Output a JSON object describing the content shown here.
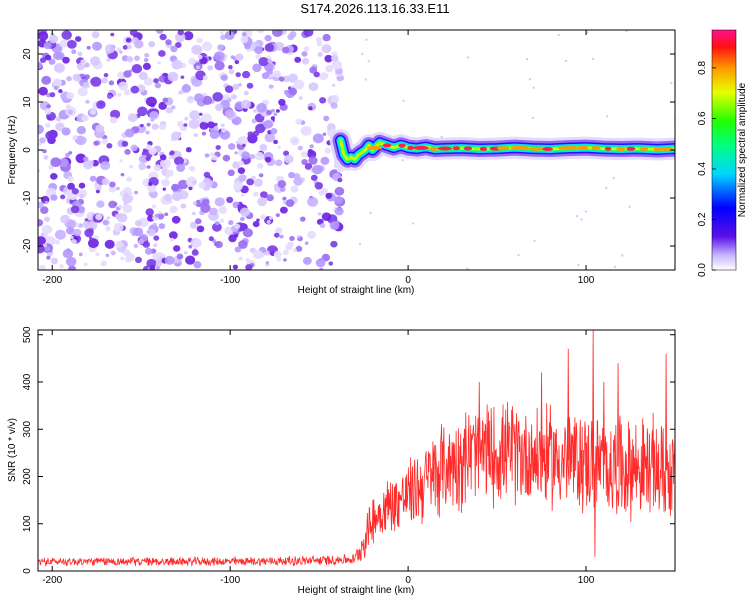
{
  "title": "S174.2026.113.16.33.E11",
  "colors": {
    "snr_line": "#ff2a2a",
    "noise_dot": "#8a2be2",
    "frame": "#000000"
  },
  "chart_data": [
    {
      "type": "heatmap",
      "title": "S174.2026.113.16.33.E11",
      "xlabel": "Height of straight line (km)",
      "ylabel": "Frequency (Hz)",
      "xlim": [
        -208,
        150
      ],
      "ylim": [
        -25,
        25
      ],
      "x_ticks": [
        -200,
        -100,
        0,
        100
      ],
      "x_tick_labels": [
        "-200",
        "-100",
        "0",
        "100"
      ],
      "y_ticks": [
        -20,
        -10,
        0,
        10,
        20
      ],
      "y_tick_labels": [
        "-20",
        "-10",
        "0",
        "10",
        "20"
      ],
      "noise_region_x": [
        -208,
        -38
      ],
      "signal_region_x": [
        -38,
        150
      ],
      "signal_track": {
        "x": [
          -38,
          -36,
          -34,
          -32,
          -30,
          -28,
          -26,
          -24,
          -22,
          -20,
          -16,
          -12,
          -8,
          -4,
          0,
          5,
          10,
          15,
          20,
          30,
          40,
          50,
          60,
          70,
          80,
          90,
          100,
          110,
          120,
          130,
          140,
          150
        ],
        "freq_hz": [
          2.0,
          -1.0,
          -2.0,
          -1.5,
          -2.0,
          -1.0,
          -0.5,
          0.0,
          1.0,
          0.0,
          1.5,
          1.0,
          0.5,
          1.0,
          0.5,
          0.3,
          0.6,
          0.2,
          0.3,
          0.4,
          0.2,
          0.3,
          0.5,
          0.3,
          0.2,
          0.4,
          0.5,
          0.3,
          0.2,
          0.3,
          0.1,
          0.3
        ]
      },
      "colorbar": {
        "label": "Normalized spectral amplitude",
        "range": [
          0.0,
          0.95
        ],
        "ticks": [
          0.0,
          0.2,
          0.4,
          0.6,
          0.8
        ],
        "tick_labels": [
          "0.0",
          "0.2",
          "0.4",
          "0.6",
          "0.8"
        ]
      }
    },
    {
      "type": "line",
      "xlabel": "Height of straight line (km)",
      "ylabel": "SNR (10 * v/v)",
      "xlim": [
        -208,
        150
      ],
      "ylim": [
        0,
        510
      ],
      "x_ticks": [
        -200,
        -100,
        0,
        100
      ],
      "x_tick_labels": [
        "-200",
        "-100",
        "0",
        "100"
      ],
      "y_ticks": [
        0,
        100,
        200,
        300,
        400,
        500
      ],
      "y_tick_labels": [
        "0",
        "100",
        "200",
        "300",
        "400",
        "500"
      ],
      "series": [
        {
          "name": "SNR",
          "envelope_x": [
            -208,
            -150,
            -100,
            -50,
            -30,
            -25,
            -20,
            -10,
            0,
            10,
            20,
            30,
            40,
            50,
            60,
            70,
            80,
            90,
            100,
            110,
            120,
            130,
            140,
            150
          ],
          "mean": [
            20,
            20,
            20,
            22,
            25,
            60,
            110,
            140,
            160,
            190,
            220,
            240,
            250,
            250,
            250,
            245,
            240,
            235,
            230,
            225,
            220,
            220,
            215,
            210
          ],
          "spread": [
            10,
            10,
            10,
            12,
            12,
            40,
            60,
            70,
            80,
            100,
            110,
            120,
            120,
            120,
            120,
            120,
            120,
            120,
            120,
            120,
            120,
            120,
            120,
            120
          ],
          "peaks": [
            {
              "x": 104,
              "y": 510
            },
            {
              "x": 90,
              "y": 470
            },
            {
              "x": 118,
              "y": 440
            },
            {
              "x": 145,
              "y": 460
            },
            {
              "x": 40,
              "y": 400
            },
            {
              "x": 75,
              "y": 420
            },
            {
              "x": 110,
              "y": 400
            },
            {
              "x": 105,
              "y": 30
            }
          ]
        }
      ]
    }
  ]
}
